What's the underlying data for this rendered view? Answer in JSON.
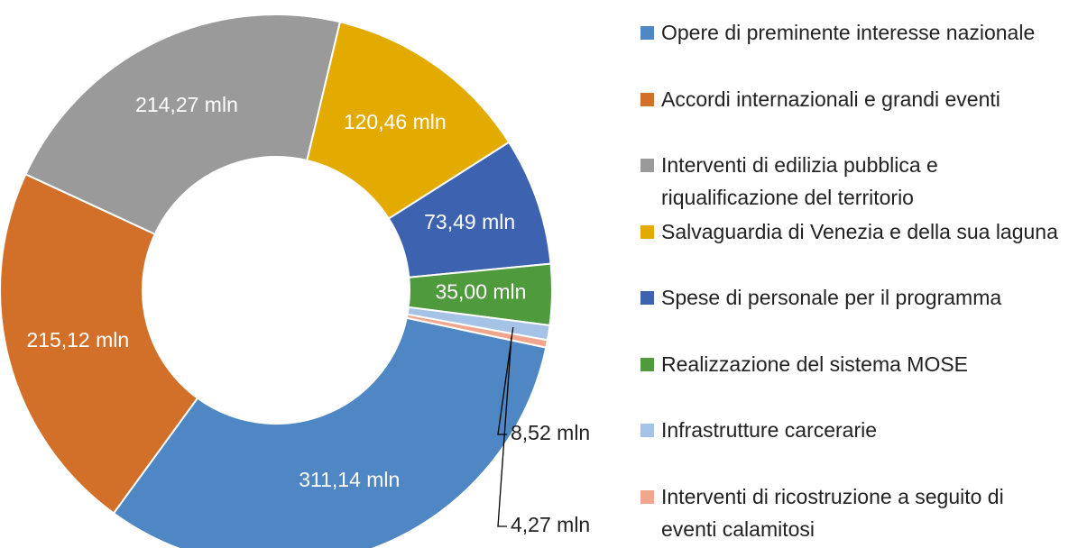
{
  "chart_data": {
    "type": "donut",
    "categories": [
      "Opere di preminente interesse nazionale",
      "Accordi internazionali e grandi eventi",
      "Interventi di edilizia pubblica e riqualificazione del territorio",
      "Salvaguardia di Venezia e della sua laguna",
      "Spese di personale per il programma",
      "Realizzazione del sistema MOSE",
      "Infrastrutture carcerarie",
      "Interventi di ricostruzione a seguito di eventi calamitosi"
    ],
    "values": [
      311.14,
      215.12,
      214.27,
      120.46,
      73.49,
      35.0,
      8.52,
      4.27
    ],
    "value_labels": [
      "311,14 mln",
      "215,12 mln",
      "214,27 mln",
      "120,46 mln",
      "73,49 mln",
      "35,00 mln",
      "8,52 mln",
      "4,27 mln"
    ],
    "colors": [
      "#4e87c3",
      "#d2702a",
      "#9a9a9a",
      "#e3ab00",
      "#3d63b0",
      "#4f9a3d",
      "#a4c3e6",
      "#f0a68c"
    ],
    "legend": "right"
  }
}
